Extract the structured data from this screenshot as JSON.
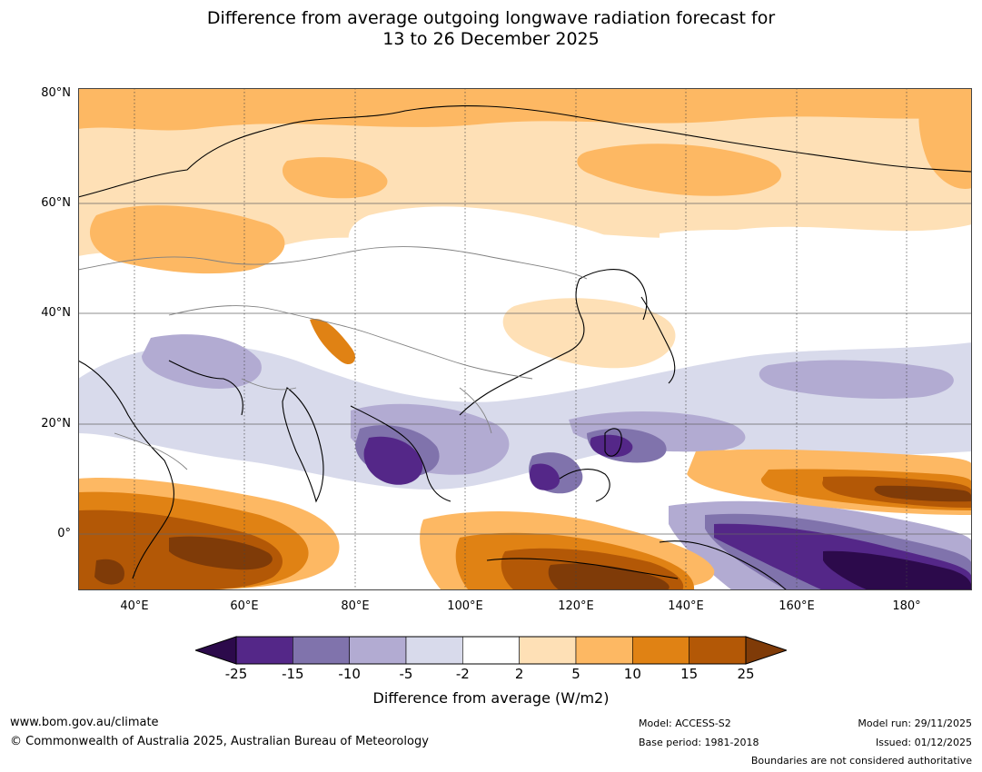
{
  "title": {
    "line1": "Difference from average outgoing longwave radiation forecast for",
    "line2": "13 to 26 December 2025"
  },
  "map": {
    "lat_labels": [
      "80°N",
      "60°N",
      "40°N",
      "20°N",
      "0°"
    ],
    "lon_labels": [
      "40°E",
      "60°E",
      "80°E",
      "100°E",
      "120°E",
      "140°E",
      "160°E",
      "180°"
    ]
  },
  "colorbar": {
    "ticks": [
      "-25",
      "-15",
      "-10",
      "-5",
      "-2",
      "2",
      "5",
      "10",
      "15",
      "25"
    ],
    "colors": [
      "#2c0a4b",
      "#542788",
      "#8073ac",
      "#b2abd2",
      "#d8daeb",
      "#ffffff",
      "#fee0b6",
      "#fdb863",
      "#e08214",
      "#b35806",
      "#7f3b08"
    ],
    "label": "Difference from average (W/m2)"
  },
  "footer": {
    "website": "www.bom.gov.au/climate",
    "copyright": "© Commonwealth of Australia 2025, Australian Bureau of Meteorology",
    "model": "Model: ACCESS-S2",
    "base_period": "Base period: 1981-2018",
    "model_run": "Model run: 29/11/2025",
    "issued": "Issued: 01/12/2025",
    "disclaimer": "Boundaries are not considered authoritative"
  }
}
